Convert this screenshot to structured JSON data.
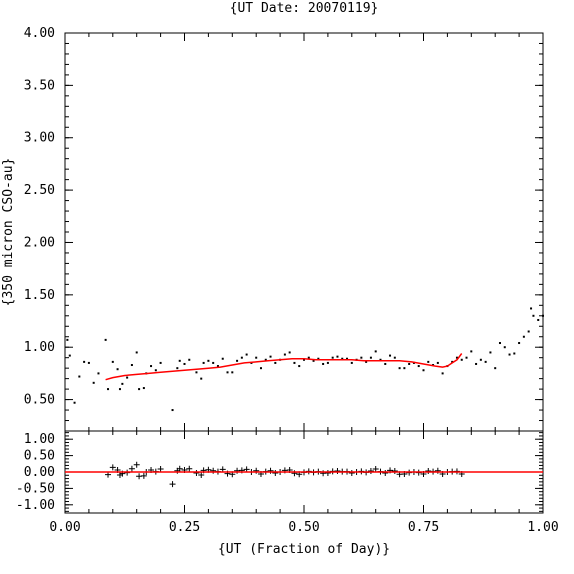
{
  "chart_data": [
    {
      "type": "scatter",
      "title": "{UT Date: 20070119}",
      "xlabel": "",
      "ylabel": "{350 micron CSO-au}",
      "xlim": [
        0.0,
        1.0
      ],
      "ylim": [
        0.2,
        4.0
      ],
      "yticks": [
        "0.50",
        "1.00",
        "1.50",
        "2.00",
        "2.50",
        "3.00",
        "3.50",
        "4.00"
      ],
      "xticks": [],
      "grid": false,
      "series": [
        {
          "marker": "dot",
          "color": "#000000",
          "points": [
            [
              0.005,
              1.07
            ],
            [
              0.01,
              0.92
            ],
            [
              0.02,
              0.47
            ],
            [
              0.03,
              0.72
            ],
            [
              0.04,
              0.86
            ],
            [
              0.05,
              0.85
            ],
            [
              0.06,
              0.66
            ],
            [
              0.07,
              0.75
            ],
            [
              0.085,
              1.07
            ],
            [
              0.09,
              0.6
            ],
            [
              0.1,
              0.86
            ],
            [
              0.11,
              0.79
            ],
            [
              0.115,
              0.6
            ],
            [
              0.12,
              0.65
            ],
            [
              0.13,
              0.71
            ],
            [
              0.14,
              0.83
            ],
            [
              0.15,
              0.95
            ],
            [
              0.155,
              0.6
            ],
            [
              0.165,
              0.61
            ],
            [
              0.17,
              0.75
            ],
            [
              0.18,
              0.82
            ],
            [
              0.19,
              0.78
            ],
            [
              0.2,
              0.85
            ],
            [
              0.225,
              0.4
            ],
            [
              0.235,
              0.8
            ],
            [
              0.24,
              0.87
            ],
            [
              0.25,
              0.84
            ],
            [
              0.26,
              0.88
            ],
            [
              0.275,
              0.76
            ],
            [
              0.285,
              0.7
            ],
            [
              0.29,
              0.85
            ],
            [
              0.3,
              0.87
            ],
            [
              0.31,
              0.85
            ],
            [
              0.32,
              0.82
            ],
            [
              0.33,
              0.89
            ],
            [
              0.34,
              0.76
            ],
            [
              0.35,
              0.76
            ],
            [
              0.36,
              0.87
            ],
            [
              0.37,
              0.9
            ],
            [
              0.38,
              0.93
            ],
            [
              0.39,
              0.85
            ],
            [
              0.4,
              0.9
            ],
            [
              0.41,
              0.8
            ],
            [
              0.42,
              0.88
            ],
            [
              0.43,
              0.91
            ],
            [
              0.44,
              0.85
            ],
            [
              0.45,
              0.88
            ],
            [
              0.46,
              0.93
            ],
            [
              0.47,
              0.95
            ],
            [
              0.48,
              0.85
            ],
            [
              0.49,
              0.82
            ],
            [
              0.5,
              0.88
            ],
            [
              0.51,
              0.9
            ],
            [
              0.52,
              0.87
            ],
            [
              0.53,
              0.89
            ],
            [
              0.54,
              0.84
            ],
            [
              0.55,
              0.85
            ],
            [
              0.56,
              0.9
            ],
            [
              0.57,
              0.91
            ],
            [
              0.58,
              0.89
            ],
            [
              0.59,
              0.89
            ],
            [
              0.6,
              0.85
            ],
            [
              0.61,
              0.88
            ],
            [
              0.62,
              0.9
            ],
            [
              0.63,
              0.86
            ],
            [
              0.64,
              0.9
            ],
            [
              0.65,
              0.96
            ],
            [
              0.66,
              0.88
            ],
            [
              0.67,
              0.84
            ],
            [
              0.68,
              0.92
            ],
            [
              0.69,
              0.9
            ],
            [
              0.7,
              0.8
            ],
            [
              0.71,
              0.8
            ],
            [
              0.72,
              0.84
            ],
            [
              0.73,
              0.85
            ],
            [
              0.74,
              0.82
            ],
            [
              0.75,
              0.78
            ],
            [
              0.76,
              0.86
            ],
            [
              0.77,
              0.83
            ],
            [
              0.78,
              0.85
            ],
            [
              0.79,
              0.75
            ],
            [
              0.8,
              0.82
            ],
            [
              0.81,
              0.86
            ],
            [
              0.82,
              0.9
            ],
            [
              0.83,
              0.88
            ],
            [
              0.84,
              0.9
            ],
            [
              0.85,
              0.96
            ],
            [
              0.86,
              0.84
            ],
            [
              0.87,
              0.88
            ],
            [
              0.88,
              0.86
            ],
            [
              0.89,
              0.95
            ],
            [
              0.9,
              0.8
            ],
            [
              0.91,
              1.04
            ],
            [
              0.92,
              1.0
            ],
            [
              0.93,
              0.93
            ],
            [
              0.94,
              0.94
            ],
            [
              0.95,
              1.04
            ],
            [
              0.96,
              1.1
            ],
            [
              0.97,
              1.15
            ],
            [
              0.975,
              1.37
            ],
            [
              0.98,
              1.3
            ],
            [
              0.99,
              1.26
            ],
            [
              1.0,
              1.3
            ]
          ]
        },
        {
          "marker": "line",
          "color": "#ff0000",
          "points": [
            [
              0.085,
              0.69
            ],
            [
              0.1,
              0.71
            ],
            [
              0.125,
              0.73
            ],
            [
              0.15,
              0.74
            ],
            [
              0.175,
              0.75
            ],
            [
              0.2,
              0.76
            ],
            [
              0.225,
              0.77
            ],
            [
              0.25,
              0.78
            ],
            [
              0.275,
              0.79
            ],
            [
              0.3,
              0.8
            ],
            [
              0.325,
              0.81
            ],
            [
              0.35,
              0.83
            ],
            [
              0.375,
              0.85
            ],
            [
              0.4,
              0.86
            ],
            [
              0.425,
              0.87
            ],
            [
              0.45,
              0.88
            ],
            [
              0.475,
              0.89
            ],
            [
              0.5,
              0.89
            ],
            [
              0.525,
              0.88
            ],
            [
              0.55,
              0.88
            ],
            [
              0.575,
              0.88
            ],
            [
              0.6,
              0.88
            ],
            [
              0.625,
              0.87
            ],
            [
              0.65,
              0.87
            ],
            [
              0.675,
              0.87
            ],
            [
              0.7,
              0.87
            ],
            [
              0.725,
              0.86
            ],
            [
              0.75,
              0.84
            ],
            [
              0.775,
              0.82
            ],
            [
              0.79,
              0.81
            ],
            [
              0.8,
              0.82
            ],
            [
              0.81,
              0.85
            ],
            [
              0.82,
              0.88
            ],
            [
              0.83,
              0.94
            ]
          ]
        }
      ]
    },
    {
      "type": "scatter",
      "title": "",
      "xlabel": "{UT (Fraction of Day)}",
      "ylabel": "",
      "xlim": [
        0.0,
        1.0
      ],
      "ylim": [
        -1.25,
        1.25
      ],
      "yticks": [
        "1.00",
        "0.50",
        "0.00",
        "-0.50",
        "-1.00"
      ],
      "xticks": [
        "0.00",
        "0.25",
        "0.50",
        "0.75",
        "1.00"
      ],
      "grid": false,
      "series": [
        {
          "marker": "plus",
          "color": "#000000",
          "points": [
            [
              0.09,
              -0.08
            ],
            [
              0.1,
              0.14
            ],
            [
              0.11,
              0.06
            ],
            [
              0.115,
              -0.09
            ],
            [
              0.12,
              -0.05
            ],
            [
              0.13,
              -0.02
            ],
            [
              0.14,
              0.1
            ],
            [
              0.15,
              0.22
            ],
            [
              0.155,
              -0.13
            ],
            [
              0.165,
              -0.12
            ],
            [
              0.17,
              0.0
            ],
            [
              0.18,
              0.06
            ],
            [
              0.19,
              0.01
            ],
            [
              0.2,
              0.09
            ],
            [
              0.225,
              -0.37
            ],
            [
              0.235,
              0.04
            ],
            [
              0.24,
              0.1
            ],
            [
              0.25,
              0.06
            ],
            [
              0.26,
              0.1
            ],
            [
              0.275,
              -0.03
            ],
            [
              0.285,
              -0.09
            ],
            [
              0.29,
              0.05
            ],
            [
              0.3,
              0.07
            ],
            [
              0.31,
              0.04
            ],
            [
              0.32,
              0.01
            ],
            [
              0.33,
              0.08
            ],
            [
              0.34,
              -0.05
            ],
            [
              0.35,
              -0.07
            ],
            [
              0.36,
              0.04
            ],
            [
              0.37,
              0.05
            ],
            [
              0.38,
              0.08
            ],
            [
              0.39,
              0.0
            ],
            [
              0.4,
              0.04
            ],
            [
              0.41,
              -0.06
            ],
            [
              0.42,
              0.01
            ],
            [
              0.43,
              0.04
            ],
            [
              0.44,
              -0.03
            ],
            [
              0.45,
              0.0
            ],
            [
              0.46,
              0.05
            ],
            [
              0.47,
              0.06
            ],
            [
              0.48,
              -0.04
            ],
            [
              0.49,
              -0.07
            ],
            [
              0.5,
              -0.01
            ],
            [
              0.51,
              0.02
            ],
            [
              0.52,
              -0.01
            ],
            [
              0.53,
              0.01
            ],
            [
              0.54,
              -0.04
            ],
            [
              0.55,
              -0.03
            ],
            [
              0.56,
              0.02
            ],
            [
              0.57,
              0.03
            ],
            [
              0.58,
              0.01
            ],
            [
              0.59,
              0.01
            ],
            [
              0.6,
              -0.03
            ],
            [
              0.61,
              0.0
            ],
            [
              0.62,
              0.02
            ],
            [
              0.63,
              -0.01
            ],
            [
              0.64,
              0.03
            ],
            [
              0.65,
              0.09
            ],
            [
              0.66,
              0.01
            ],
            [
              0.67,
              -0.03
            ],
            [
              0.68,
              0.05
            ],
            [
              0.69,
              0.03
            ],
            [
              0.7,
              -0.07
            ],
            [
              0.71,
              -0.06
            ],
            [
              0.72,
              -0.02
            ],
            [
              0.73,
              0.0
            ],
            [
              0.74,
              -0.02
            ],
            [
              0.75,
              -0.06
            ],
            [
              0.76,
              0.03
            ],
            [
              0.77,
              0.01
            ],
            [
              0.78,
              0.04
            ],
            [
              0.79,
              -0.06
            ],
            [
              0.8,
              0.0
            ],
            [
              0.81,
              0.01
            ],
            [
              0.82,
              0.02
            ],
            [
              0.83,
              -0.06
            ]
          ]
        },
        {
          "marker": "hline",
          "color": "#ff0000",
          "points": [
            [
              0.0,
              0.0
            ],
            [
              1.0,
              0.0
            ]
          ]
        }
      ]
    }
  ]
}
